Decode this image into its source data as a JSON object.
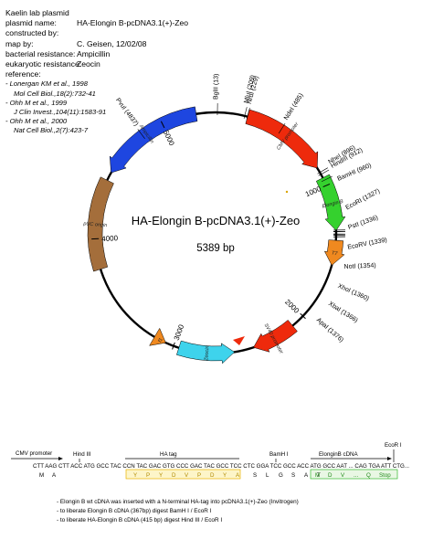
{
  "info": {
    "lab": "Kaelin lab plasmid",
    "rows": [
      {
        "label": "plasmid name:",
        "value": "HA-Elongin B-pcDNA3.1(+)-Zeo"
      },
      {
        "label": "constructed by:",
        "value": ""
      },
      {
        "label": "map by:",
        "value": "C. Geisen, 12/02/08"
      },
      {
        "label": "bacterial resistance:",
        "value": "Ampicillin"
      },
      {
        "label": "eukaryotic resistance:",
        "value": "Zeocin"
      },
      {
        "label": "reference:",
        "value": ""
      }
    ],
    "references": [
      {
        "text": "- Lonergan KM et al., 1998",
        "indent": false
      },
      {
        "text": "Mol Cell Biol.,18(2):732-41",
        "indent": true
      },
      {
        "text": "- Ohh M et al., 1999",
        "indent": false
      },
      {
        "text": "J Clin Invest.,104(11):1583-91",
        "indent": true
      },
      {
        "text": "- Ohh M et al., 2000",
        "indent": false
      },
      {
        "text": "Nat Cell Biol.,2(7):423-7",
        "indent": true
      }
    ]
  },
  "plasmid": {
    "name": "HA-Elongin B-pcDNA3.1(+)-Zeo",
    "size_label": "5389 bp",
    "total_bp": 5389,
    "tick_labels": [
      "1000",
      "2000",
      "3000",
      "4000",
      "5000"
    ],
    "features": [
      {
        "name": "CMV promoter",
        "start": 230,
        "end": 860,
        "color": "#ee2a0c",
        "arrow": "cw"
      },
      {
        "name": "Elongin B",
        "start": 940,
        "end": 1330,
        "color": "#35d12e",
        "arrow": "cw"
      },
      {
        "name": "T7",
        "start": 1400,
        "end": 1580,
        "color": "#f0891f",
        "arrow": "cw"
      },
      {
        "name": "SV40 promoter",
        "start": 2100,
        "end": 2420,
        "color": "#ee2a0c",
        "arrow": "cw"
      },
      {
        "name": "Zeocin",
        "start": 2560,
        "end": 2960,
        "color": "#3ed3ec",
        "arrow": "ccw"
      },
      {
        "name": "f1",
        "start": 3060,
        "end": 3150,
        "color": "#f0891f",
        "arrow": "ccw"
      },
      {
        "name": "pUC origin",
        "start": 3780,
        "end": 4430,
        "color": "#a46e3b",
        "arrow": "none"
      },
      {
        "name": "Ampicillin",
        "start": 4490,
        "end": 5250,
        "color": "#1e46e0",
        "arrow": "ccw"
      }
    ],
    "sites": [
      {
        "label": "BglII (13)",
        "pos": 13
      },
      {
        "label": "MluI (209)",
        "pos": 209
      },
      {
        "label": "NruI (229)",
        "pos": 229
      },
      {
        "label": "NdeI (485)",
        "pos": 485
      },
      {
        "label": "NheI (896)",
        "pos": 896
      },
      {
        "label": "HindIII (912)",
        "pos": 912
      },
      {
        "label": "BamHI (960)",
        "pos": 960
      },
      {
        "label": "EcoRI (1327)",
        "pos": 1327
      },
      {
        "label": "PstI (1336)",
        "pos": 1336
      },
      {
        "label": "EcoRV (1339)",
        "pos": 1339
      },
      {
        "label": "NotI (1354)",
        "pos": 1354
      },
      {
        "label": "XhoI (1360)",
        "pos": 1360
      },
      {
        "label": "XbaI (1366)",
        "pos": 1366
      },
      {
        "label": "ApaI (1376)",
        "pos": 1376
      },
      {
        "label": "PvuI (4837)",
        "pos": 4837
      }
    ]
  },
  "sequence": {
    "cmv_label": "CMV promoter",
    "hind_label": "Hind III",
    "ha_label": "HA tag",
    "bam_label": "BamH I",
    "elongin_label": "ElonginB cDNA",
    "eco_label": "EcoR I",
    "dna": "CTT AAG CTT ACC ATG GCC TAC CCN TAC GAC GTG CCC GAC TAC GCC TCC CTC GGA TCC GCC ACC ATG GCC AAT ... CAG TGA ATT CTG...",
    "aa_prefix": [
      "M",
      "A"
    ],
    "aa_ha": [
      "Y",
      "P",
      "Y",
      "D",
      "V",
      "P",
      "D",
      "Y",
      "A"
    ],
    "aa_mid": [
      "S",
      "L",
      "G",
      "S",
      "A",
      "T"
    ],
    "aa_elongin": [
      "M",
      "D",
      "V",
      "...",
      "Q",
      "Stop"
    ]
  },
  "notes": [
    "- Elongin B wt cDNA was inserted with a N-terminal HA-tag into pcDNA3.1(+)-Zeo (Invitrogen)",
    "- to liberate Elongin B cDNA (367bp) digest BamH I / EcoR I",
    "- to liberate HA-Elongin B cDNA (415 bp) digest Hind III / EcoR I"
  ]
}
